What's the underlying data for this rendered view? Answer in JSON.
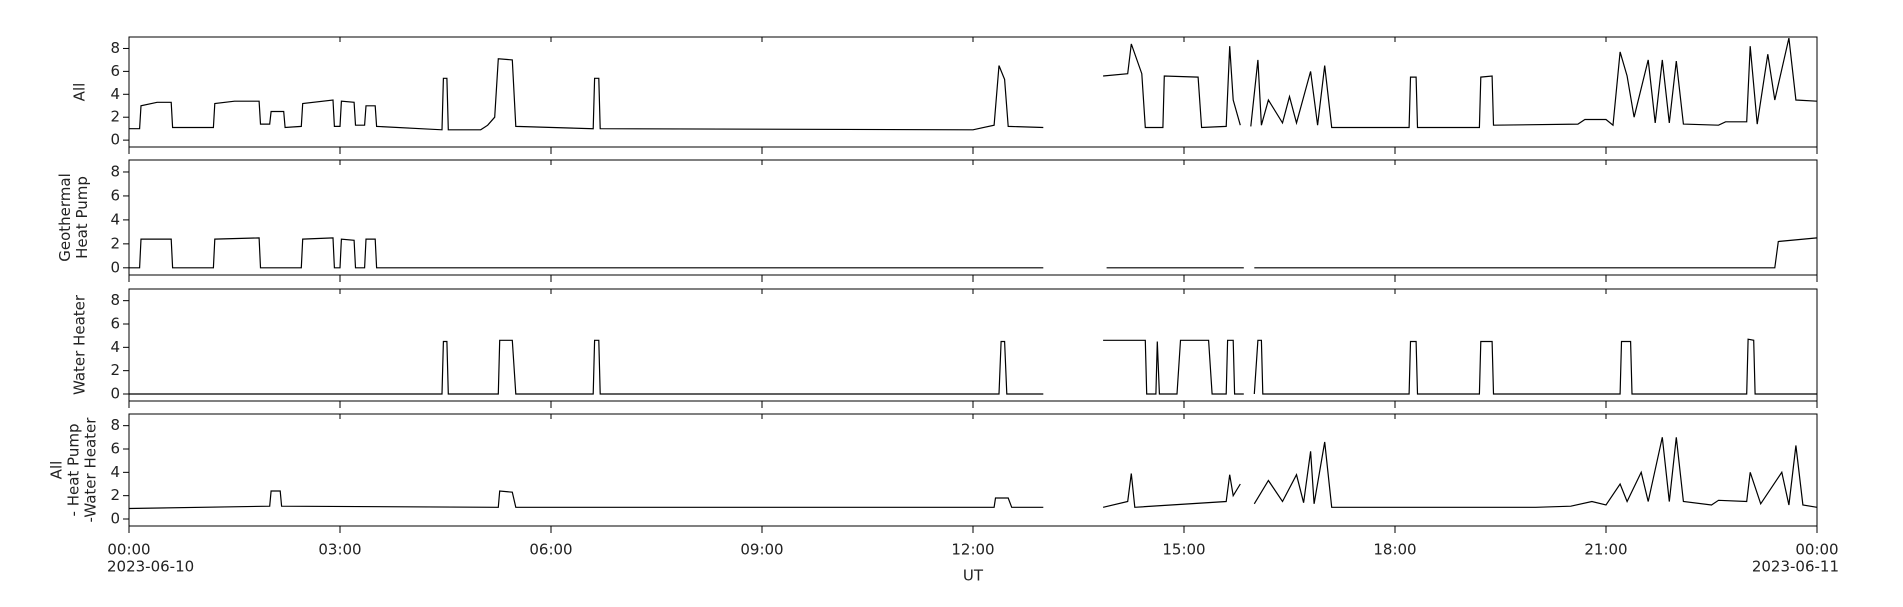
{
  "chart_data": [
    {
      "type": "line",
      "ylabel": [
        "All"
      ],
      "color": "#000000",
      "xlim": [
        0,
        24
      ],
      "ylim": [
        -0.6,
        9
      ],
      "yticks": [
        0,
        2,
        4,
        6,
        8
      ],
      "x": [
        0,
        0.15,
        0.17,
        0.4,
        0.6,
        0.62,
        1.2,
        1.22,
        1.5,
        1.85,
        1.87,
        2.0,
        2.02,
        2.2,
        2.22,
        2.45,
        2.47,
        2.9,
        2.92,
        3.0,
        3.02,
        3.2,
        3.22,
        3.35,
        3.37,
        3.5,
        3.52,
        4.45,
        4.47,
        4.52,
        4.54,
        5.0,
        5.1,
        5.2,
        5.25,
        5.45,
        5.5,
        6.6,
        6.62,
        6.68,
        6.7,
        9.0,
        12.0,
        12.3,
        12.37,
        12.45,
        12.5,
        13.0,
        13.05,
        13.85,
        14.2,
        14.25,
        14.4,
        14.45,
        14.7,
        14.72,
        15.2,
        15.25,
        15.6,
        15.65,
        15.7,
        15.8,
        15.85,
        15.95,
        16.05,
        16.1,
        16.2,
        16.4,
        16.5,
        16.6,
        16.8,
        16.9,
        17.0,
        17.1,
        18.2,
        18.22,
        18.3,
        18.32,
        19.2,
        19.22,
        19.38,
        19.4,
        20.6,
        20.7,
        21.0,
        21.1,
        21.2,
        21.3,
        21.4,
        21.6,
        21.7,
        21.8,
        21.9,
        22.0,
        22.1,
        22.6,
        22.7,
        23.0,
        23.05,
        23.15,
        23.3,
        23.4,
        23.6,
        23.7,
        24
      ],
      "values": [
        1.0,
        1.0,
        3.0,
        3.3,
        3.3,
        1.1,
        1.1,
        3.2,
        3.4,
        3.4,
        1.4,
        1.4,
        2.5,
        2.5,
        1.1,
        1.2,
        3.2,
        3.5,
        1.2,
        1.2,
        3.4,
        3.3,
        1.3,
        1.3,
        3.0,
        3.0,
        1.2,
        0.9,
        5.4,
        5.4,
        0.9,
        0.9,
        1.3,
        2.0,
        7.1,
        7.0,
        1.2,
        1.0,
        5.4,
        5.4,
        1.0,
        0.95,
        0.9,
        1.3,
        6.5,
        5.3,
        1.2,
        1.1,
        null,
        5.6,
        5.8,
        8.4,
        5.8,
        1.1,
        1.1,
        5.6,
        5.5,
        1.1,
        1.2,
        8.2,
        3.5,
        1.3,
        null,
        1.2,
        7.0,
        1.3,
        3.5,
        1.5,
        3.8,
        1.5,
        6.0,
        1.3,
        6.5,
        1.1,
        1.1,
        5.5,
        5.5,
        1.1,
        1.1,
        5.5,
        5.6,
        1.3,
        1.4,
        1.8,
        1.8,
        1.3,
        7.7,
        5.6,
        2.0,
        7.0,
        1.5,
        7.0,
        1.5,
        6.9,
        1.4,
        1.3,
        1.6,
        1.6,
        8.2,
        1.4,
        7.5,
        3.5,
        8.9,
        3.5,
        3.4
      ]
    },
    {
      "type": "line",
      "ylabel": [
        "Geothermal",
        "Heat Pump"
      ],
      "color": "#000000",
      "xlim": [
        0,
        24
      ],
      "ylim": [
        -0.6,
        9
      ],
      "yticks": [
        0,
        2,
        4,
        6,
        8
      ],
      "x": [
        0,
        0.15,
        0.17,
        0.6,
        0.62,
        1.2,
        1.22,
        1.85,
        1.87,
        2.45,
        2.47,
        2.9,
        2.92,
        3.0,
        3.02,
        3.2,
        3.22,
        3.35,
        3.37,
        3.5,
        3.52,
        13.0,
        13.05,
        13.9,
        15.85,
        15.9,
        16.0,
        23.0,
        23.4,
        23.45,
        24
      ],
      "values": [
        0,
        0,
        2.4,
        2.4,
        0,
        0,
        2.4,
        2.5,
        0,
        0,
        2.4,
        2.5,
        0,
        0,
        2.4,
        2.3,
        0,
        0,
        2.4,
        2.4,
        0,
        0,
        null,
        0,
        0,
        null,
        0,
        0,
        0,
        2.2,
        2.5
      ]
    },
    {
      "type": "line",
      "ylabel": [
        "Water Heater"
      ],
      "color": "#000000",
      "xlim": [
        0,
        24
      ],
      "ylim": [
        -0.6,
        9
      ],
      "yticks": [
        0,
        2,
        4,
        6,
        8
      ],
      "x": [
        0,
        4.45,
        4.47,
        4.52,
        4.54,
        5.25,
        5.27,
        5.45,
        5.5,
        6.6,
        6.62,
        6.68,
        6.7,
        12.37,
        12.4,
        12.45,
        12.48,
        13.0,
        13.05,
        13.85,
        14.45,
        14.47,
        14.6,
        14.62,
        14.65,
        14.9,
        14.95,
        15.35,
        15.4,
        15.6,
        15.62,
        15.7,
        15.72,
        15.85,
        15.9,
        16.0,
        16.05,
        16.1,
        16.12,
        18.2,
        18.22,
        18.3,
        18.32,
        19.2,
        19.22,
        19.38,
        19.4,
        21.2,
        21.22,
        21.35,
        21.37,
        23.0,
        23.02,
        23.1,
        23.12,
        24
      ],
      "values": [
        0,
        0,
        4.5,
        4.5,
        0,
        0,
        4.6,
        4.6,
        0,
        0,
        4.6,
        4.6,
        0,
        0,
        4.5,
        4.5,
        0,
        0,
        null,
        4.6,
        4.6,
        0,
        0,
        4.5,
        0,
        0,
        4.6,
        4.6,
        0,
        0,
        4.6,
        4.6,
        0,
        0,
        null,
        0,
        4.6,
        4.6,
        0,
        0,
        4.5,
        4.5,
        0,
        0,
        4.5,
        4.5,
        0,
        0,
        4.5,
        4.5,
        0,
        0,
        4.7,
        4.6,
        0,
        0
      ]
    },
    {
      "type": "line",
      "ylabel": [
        "All",
        "- Heat Pump",
        "-Water Heater"
      ],
      "color": "#000000",
      "xlim": [
        0,
        24
      ],
      "ylim": [
        -0.6,
        9
      ],
      "yticks": [
        0,
        2,
        4,
        6,
        8
      ],
      "x": [
        0,
        2.0,
        2.02,
        2.15,
        2.17,
        5.25,
        5.27,
        5.45,
        5.5,
        12.3,
        12.32,
        12.5,
        12.55,
        13.0,
        13.05,
        13.85,
        14.2,
        14.25,
        14.3,
        15.6,
        15.65,
        15.7,
        15.8,
        15.85,
        16.0,
        16.2,
        16.4,
        16.6,
        16.7,
        16.8,
        16.85,
        17.0,
        17.1,
        20.0,
        20.5,
        20.8,
        21.0,
        21.2,
        21.3,
        21.5,
        21.6,
        21.8,
        21.9,
        22.0,
        22.1,
        22.5,
        22.6,
        23.0,
        23.05,
        23.2,
        23.5,
        23.6,
        23.7,
        23.8,
        24
      ],
      "values": [
        0.9,
        1.1,
        2.4,
        2.4,
        1.1,
        1.0,
        2.4,
        2.3,
        1.0,
        1.0,
        1.8,
        1.8,
        1.0,
        1.0,
        null,
        1.0,
        1.5,
        3.9,
        1.0,
        1.5,
        3.8,
        2.0,
        3.0,
        null,
        1.3,
        3.3,
        1.5,
        3.8,
        1.4,
        5.8,
        1.3,
        6.6,
        1.0,
        1.0,
        1.1,
        1.5,
        1.2,
        3.0,
        1.5,
        4.0,
        1.5,
        7.0,
        1.5,
        7.0,
        1.5,
        1.2,
        1.6,
        1.5,
        4.0,
        1.3,
        4.0,
        1.2,
        6.3,
        1.2,
        1.0
      ],
      "xlabel": "UT",
      "xticks": [
        {
          "value": 0,
          "label": "00:00"
        },
        {
          "value": 3,
          "label": "03:00"
        },
        {
          "value": 6,
          "label": "06:00"
        },
        {
          "value": 9,
          "label": "09:00"
        },
        {
          "value": 12,
          "label": "12:00"
        },
        {
          "value": 15,
          "label": "15:00"
        },
        {
          "value": 18,
          "label": "18:00"
        },
        {
          "value": 21,
          "label": "21:00"
        },
        {
          "value": 24,
          "label": "00:00"
        }
      ],
      "x_date_labels": [
        {
          "value": 0,
          "label": "2023-06-10"
        },
        {
          "value": 24,
          "label": "2023-06-11"
        }
      ]
    }
  ]
}
